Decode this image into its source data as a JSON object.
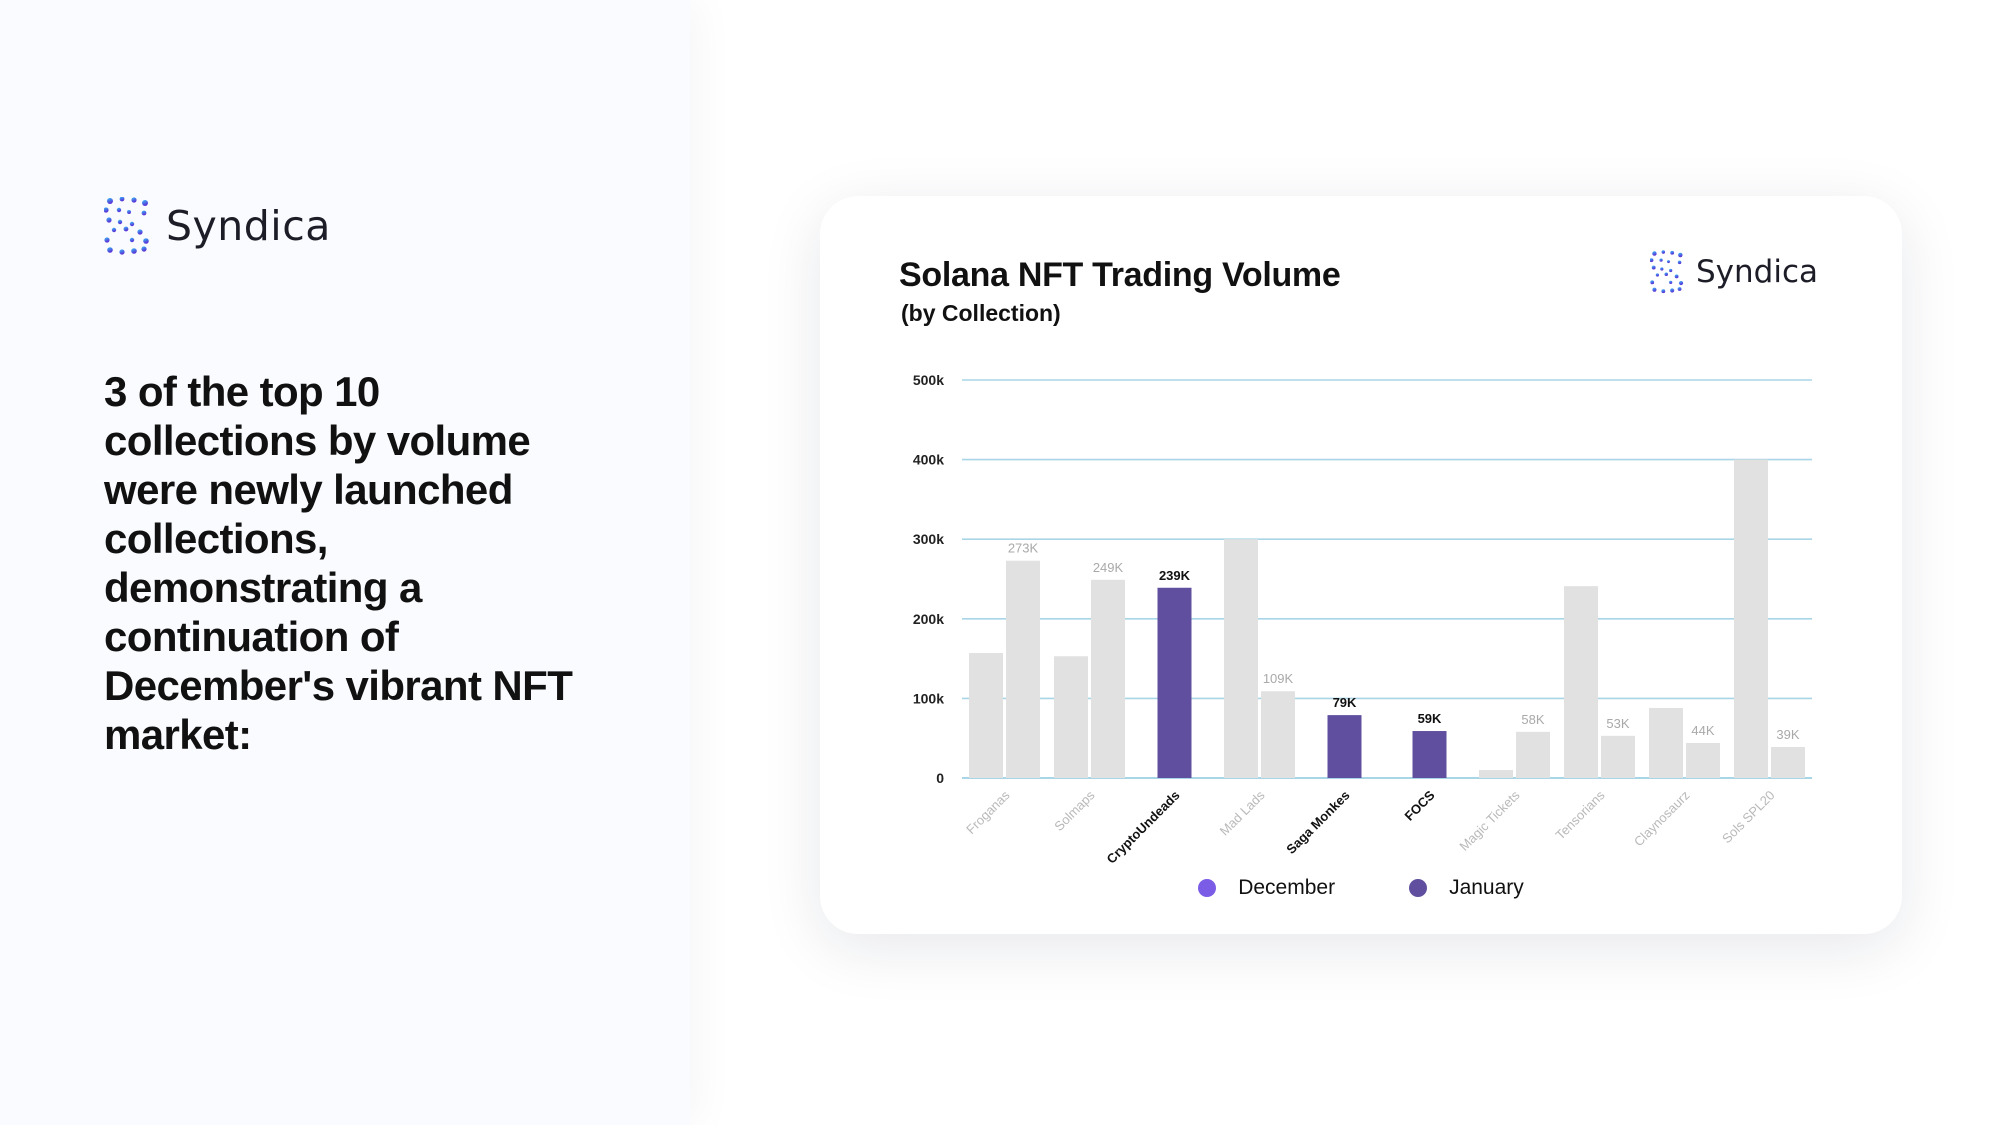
{
  "left_panel": {
    "brand_name": "Syndica",
    "headline": "3 of the top 10 collections by volume were newly launched collections, demonstrating a continuation of December's vibrant NFT market:"
  },
  "card": {
    "brand_name": "Syndica"
  },
  "colors": {
    "december": "#7b5ce6",
    "january": "#5f4f9e",
    "muted_bar": "#e1e1e1",
    "grid": "#a9d6e6",
    "brand_gradient_start": "#38bdf8",
    "brand_gradient_end": "#5b2fd6"
  },
  "chart_data": {
    "type": "bar",
    "title": "Solana NFT Trading Volume",
    "subtitle": "(by Collection)",
    "xlabel": "",
    "ylabel": "",
    "ylim": [
      0,
      500000
    ],
    "yticks": [
      0,
      100000,
      200000,
      300000,
      400000,
      500000
    ],
    "ytick_labels": [
      "0",
      "100k",
      "200k",
      "300k",
      "400k",
      "500k"
    ],
    "grid": true,
    "legend_position": "bottom-center",
    "categories": [
      "Froganas",
      "Solmaps",
      "CryptoUndeads",
      "Mad Lads",
      "Saga Monkes",
      "FOCS",
      "Magic Tickets",
      "Tensorians",
      "Claynosaurz",
      "Sols SPL20"
    ],
    "highlighted_categories": [
      "CryptoUndeads",
      "Saga Monkes",
      "FOCS"
    ],
    "series": [
      {
        "name": "December",
        "values": [
          157000,
          153000,
          null,
          300000,
          null,
          null,
          10000,
          241000,
          88000,
          400000
        ]
      },
      {
        "name": "January",
        "values": [
          273000,
          249000,
          239000,
          109000,
          79000,
          59000,
          58000,
          53000,
          44000,
          39000
        ]
      }
    ],
    "data_labels": [
      "273K",
      "249K",
      "239K",
      "109K",
      "79K",
      "59K",
      "58K",
      "53K",
      "44K",
      "39K"
    ]
  }
}
